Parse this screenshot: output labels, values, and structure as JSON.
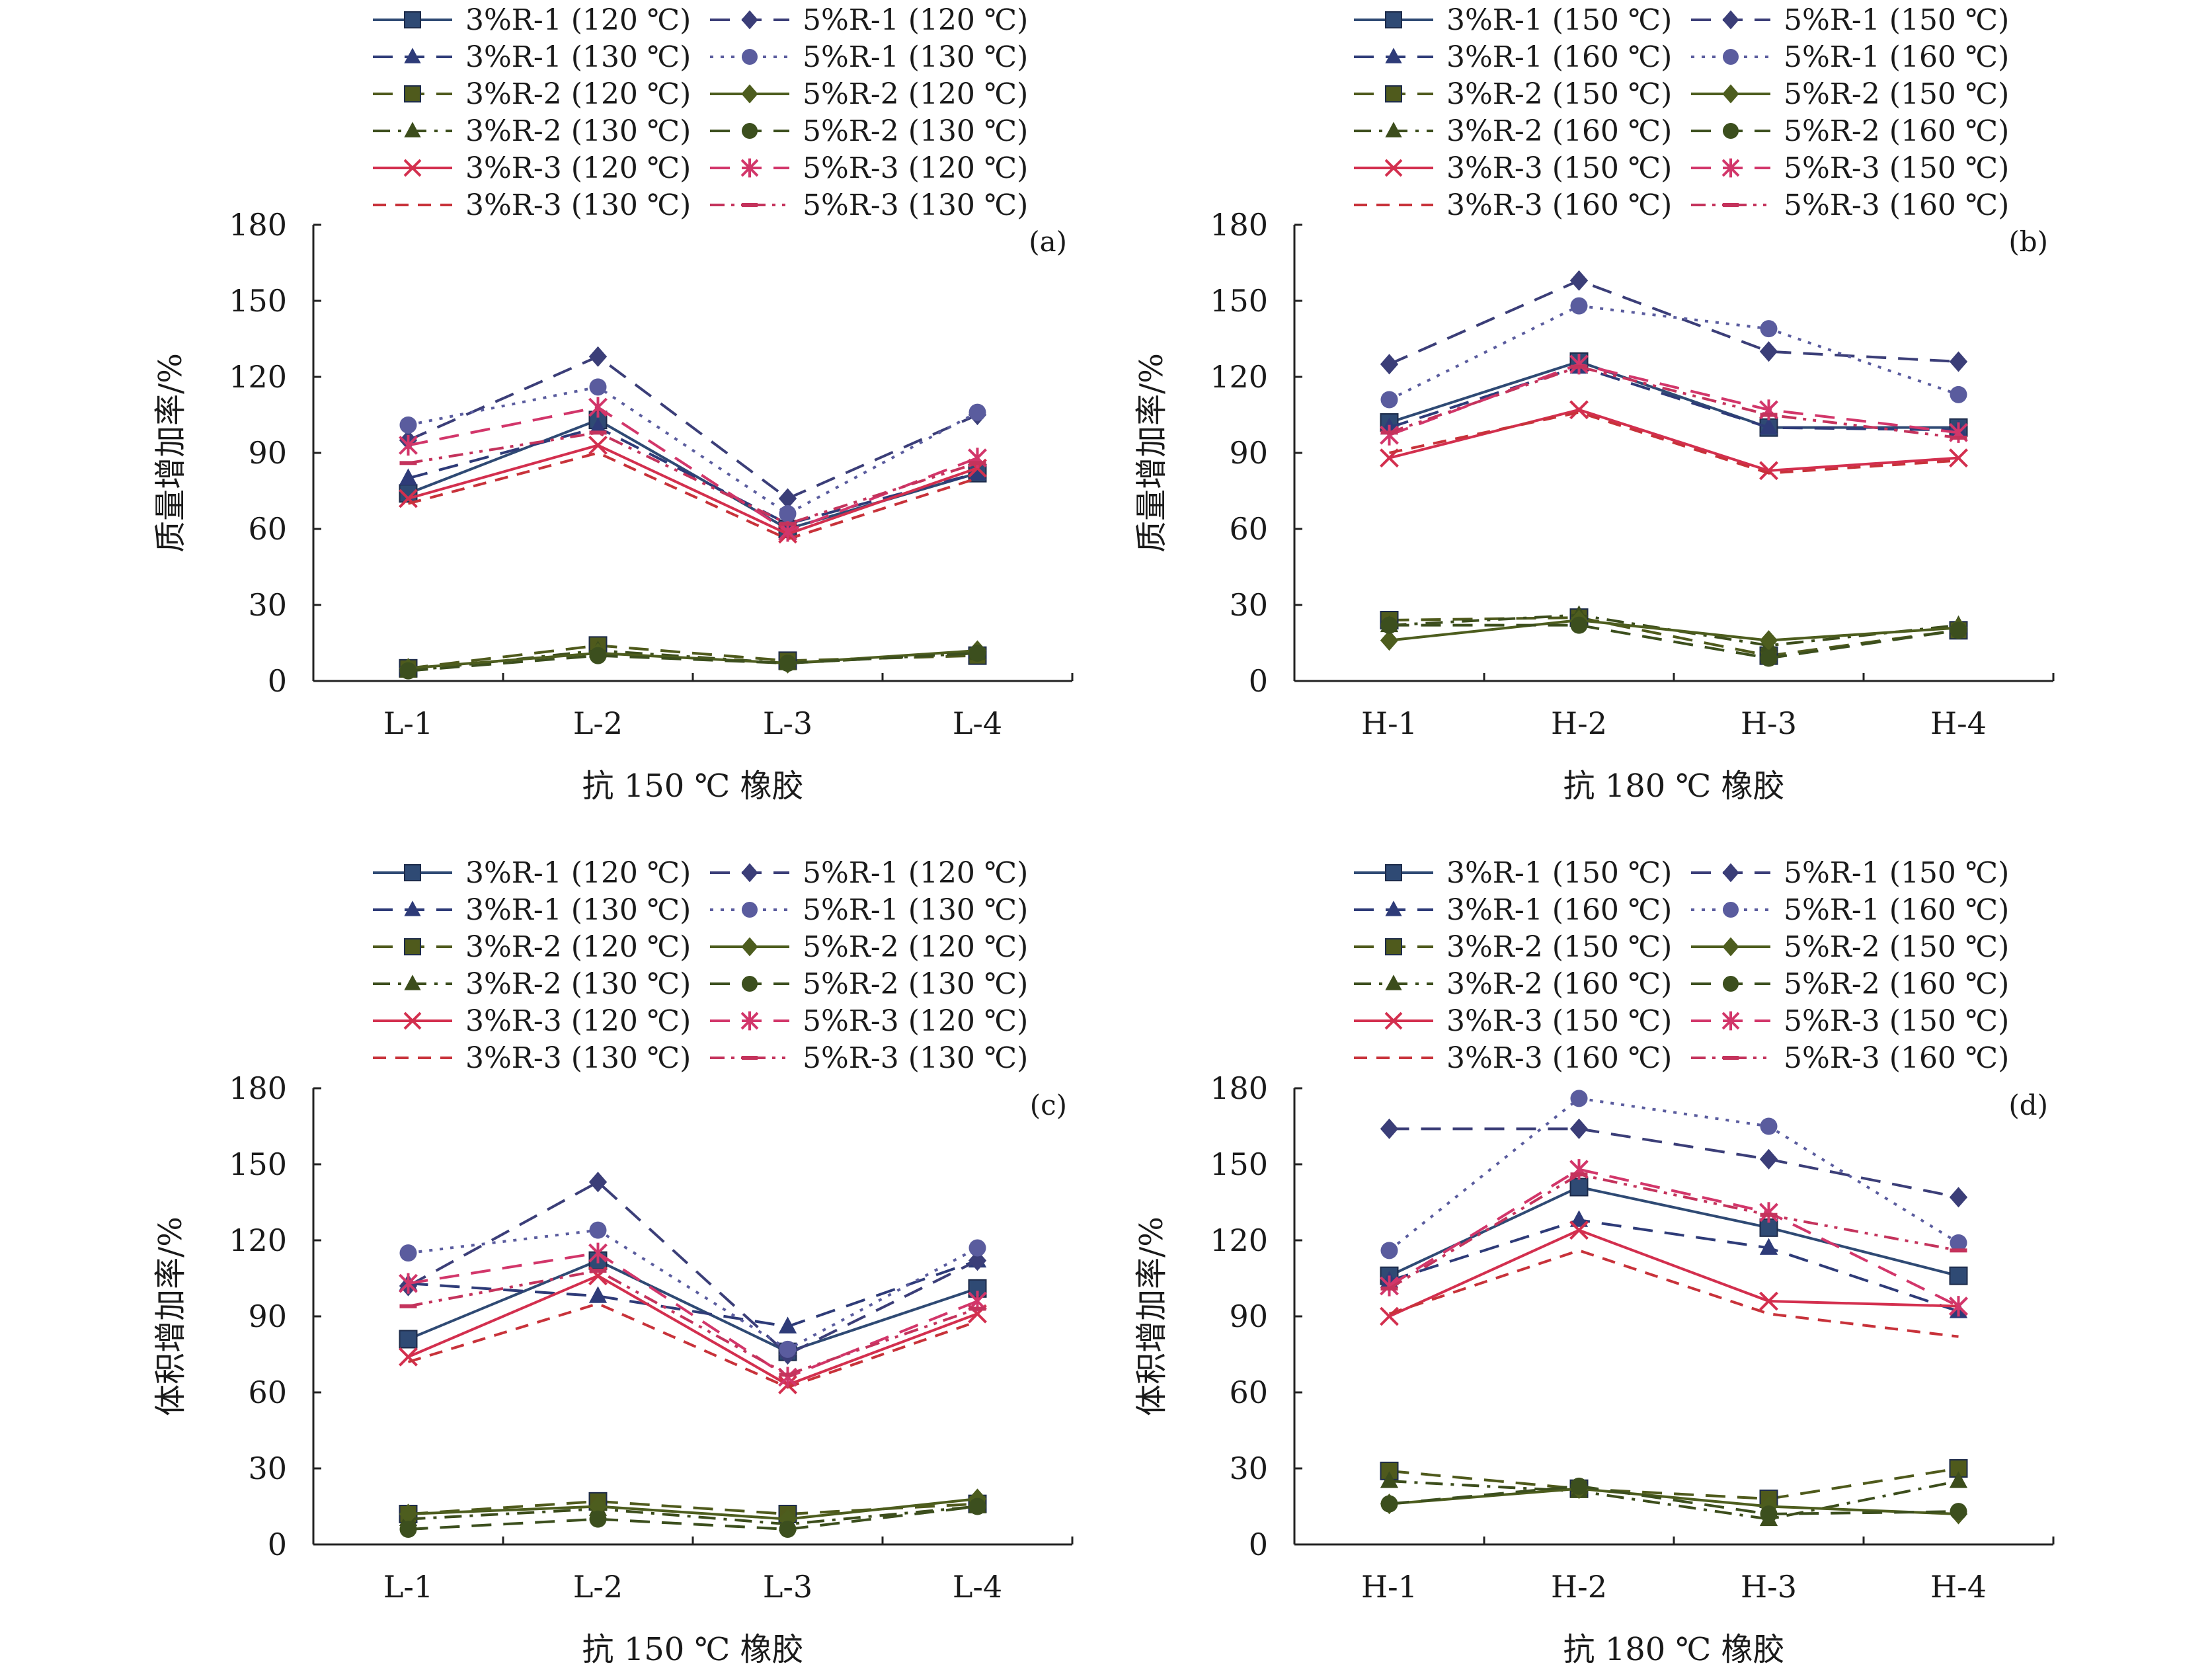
{
  "figure": {
    "ylabel_mass": "质量增加率/%",
    "ylabel_volume": "体积增加率/%",
    "xlabel_150": "抗 150 ℃ 橡胶",
    "xlabel_180": "抗 180 ℃ 橡胶"
  },
  "chart_data": [
    {
      "type": "line",
      "panel": "(a)",
      "xlabel": "抗 150 ℃ 橡胶",
      "ylabel": "质量增加率/%",
      "categories": [
        "L-1",
        "L-2",
        "L-3",
        "L-4"
      ],
      "ylim": [
        0,
        180
      ],
      "yticks": [
        0,
        30,
        60,
        90,
        120,
        150,
        180
      ],
      "grid": false,
      "legend_position": "top",
      "series": [
        {
          "name": "3%R-1 (120 ℃)",
          "values": [
            74,
            103,
            60,
            82
          ],
          "color": "#2f4a74",
          "dash": "solid",
          "marker": "square"
        },
        {
          "name": "3%R-1 (130 ℃)",
          "values": [
            80,
            100,
            62,
            82
          ],
          "color": "#2e3b78",
          "dash": "longdash",
          "marker": "triangle"
        },
        {
          "name": "3%R-2 (120 ℃)",
          "values": [
            5,
            14,
            8,
            10
          ],
          "color": "#4f5a1c",
          "dash": "longdash",
          "marker": "square"
        },
        {
          "name": "3%R-2 (130 ℃)",
          "values": [
            4,
            12,
            7,
            11
          ],
          "color": "#3c4d1c",
          "dash": "dashdot",
          "marker": "triangle"
        },
        {
          "name": "3%R-3 (120 ℃)",
          "values": [
            72,
            93,
            58,
            84
          ],
          "color": "#d32f4e",
          "dash": "solid",
          "marker": "x"
        },
        {
          "name": "3%R-3 (130 ℃)",
          "values": [
            70,
            90,
            56,
            80
          ],
          "color": "#c8323a",
          "dash": "dash",
          "marker": "none"
        },
        {
          "name": "5%R-1 (120 ℃)",
          "values": [
            95,
            128,
            72,
            105
          ],
          "color": "#3b3e78",
          "dash": "longdash",
          "marker": "diamond"
        },
        {
          "name": "5%R-1 (130 ℃)",
          "values": [
            101,
            116,
            66,
            106
          ],
          "color": "#5a5c9e",
          "dash": "dot",
          "marker": "circle"
        },
        {
          "name": "5%R-2 (120 ℃)",
          "values": [
            5,
            11,
            7,
            12
          ],
          "color": "#4d5d1e",
          "dash": "solid",
          "marker": "diamond"
        },
        {
          "name": "5%R-2 (130 ℃)",
          "values": [
            4,
            10,
            7,
            11
          ],
          "color": "#3c4f1e",
          "dash": "longdash",
          "marker": "circle"
        },
        {
          "name": "5%R-3 (120 ℃)",
          "values": [
            93,
            108,
            59,
            88
          ],
          "color": "#d2366a",
          "dash": "longdash",
          "marker": "asterisk"
        },
        {
          "name": "5%R-3 (130 ℃)",
          "values": [
            86,
            98,
            62,
            86
          ],
          "color": "#c4335c",
          "dash": "dashdotdot",
          "marker": "bar"
        }
      ]
    },
    {
      "type": "line",
      "panel": "(b)",
      "xlabel": "抗 180 ℃ 橡胶",
      "ylabel": "质量增加率/%",
      "categories": [
        "H-1",
        "H-2",
        "H-3",
        "H-4"
      ],
      "ylim": [
        0,
        180
      ],
      "yticks": [
        0,
        30,
        60,
        90,
        120,
        150,
        180
      ],
      "grid": false,
      "legend_position": "top",
      "series": [
        {
          "name": "3%R-1 (150 ℃)",
          "values": [
            102,
            126,
            100,
            100
          ],
          "color": "#2f4a74",
          "dash": "solid",
          "marker": "square"
        },
        {
          "name": "3%R-1 (160 ℃)",
          "values": [
            100,
            124,
            100,
            99
          ],
          "color": "#2e3b78",
          "dash": "longdash",
          "marker": "triangle"
        },
        {
          "name": "3%R-2 (150 ℃)",
          "values": [
            24,
            25,
            10,
            20
          ],
          "color": "#4f5a1c",
          "dash": "longdash",
          "marker": "square"
        },
        {
          "name": "3%R-2 (160 ℃)",
          "values": [
            22,
            26,
            14,
            22
          ],
          "color": "#3c4d1c",
          "dash": "dashdot",
          "marker": "triangle"
        },
        {
          "name": "3%R-3 (150 ℃)",
          "values": [
            88,
            107,
            83,
            88
          ],
          "color": "#d32f4e",
          "dash": "solid",
          "marker": "x"
        },
        {
          "name": "3%R-3 (160 ℃)",
          "values": [
            90,
            106,
            82,
            87
          ],
          "color": "#c8323a",
          "dash": "dash",
          "marker": "none"
        },
        {
          "name": "5%R-1 (150 ℃)",
          "values": [
            125,
            158,
            130,
            126
          ],
          "color": "#3b3e78",
          "dash": "longdash",
          "marker": "diamond"
        },
        {
          "name": "5%R-1 (160 ℃)",
          "values": [
            111,
            148,
            139,
            113
          ],
          "color": "#5a5c9e",
          "dash": "dot",
          "marker": "circle"
        },
        {
          "name": "5%R-2 (150 ℃)",
          "values": [
            16,
            24,
            16,
            21
          ],
          "color": "#4d5d1e",
          "dash": "solid",
          "marker": "diamond"
        },
        {
          "name": "5%R-2 (160 ℃)",
          "values": [
            22,
            22,
            9,
            20
          ],
          "color": "#3c4f1e",
          "dash": "longdash",
          "marker": "circle"
        },
        {
          "name": "5%R-3 (150 ℃)",
          "values": [
            97,
            125,
            107,
            98
          ],
          "color": "#d2366a",
          "dash": "longdash",
          "marker": "asterisk"
        },
        {
          "name": "5%R-3 (160 ℃)",
          "values": [
            98,
            124,
            105,
            96
          ],
          "color": "#c4335c",
          "dash": "dashdotdot",
          "marker": "bar"
        }
      ]
    },
    {
      "type": "line",
      "panel": "(c)",
      "xlabel": "抗 150 ℃ 橡胶",
      "ylabel": "体积增加率/%",
      "categories": [
        "L-1",
        "L-2",
        "L-3",
        "L-4"
      ],
      "ylim": [
        0,
        180
      ],
      "yticks": [
        0,
        30,
        60,
        90,
        120,
        150,
        180
      ],
      "grid": false,
      "legend_position": "top",
      "series": [
        {
          "name": "3%R-1 (120 ℃)",
          "values": [
            81,
            112,
            76,
            101
          ],
          "color": "#2f4a74",
          "dash": "solid",
          "marker": "square"
        },
        {
          "name": "3%R-1 (130 ℃)",
          "values": [
            103,
            98,
            86,
            112
          ],
          "color": "#2e3b78",
          "dash": "longdash",
          "marker": "triangle"
        },
        {
          "name": "3%R-2 (120 ℃)",
          "values": [
            12,
            17,
            12,
            16
          ],
          "color": "#4f5a1c",
          "dash": "longdash",
          "marker": "square"
        },
        {
          "name": "3%R-2 (130 ℃)",
          "values": [
            10,
            14,
            8,
            15
          ],
          "color": "#3c4d1c",
          "dash": "dashdot",
          "marker": "triangle"
        },
        {
          "name": "3%R-3 (120 ℃)",
          "values": [
            74,
            106,
            63,
            91
          ],
          "color": "#d32f4e",
          "dash": "solid",
          "marker": "x"
        },
        {
          "name": "3%R-3 (130 ℃)",
          "values": [
            72,
            95,
            62,
            88
          ],
          "color": "#c8323a",
          "dash": "dash",
          "marker": "none"
        },
        {
          "name": "5%R-1 (120 ℃)",
          "values": [
            102,
            143,
            75,
            112
          ],
          "color": "#3b3e78",
          "dash": "longdash",
          "marker": "diamond"
        },
        {
          "name": "5%R-1 (130 ℃)",
          "values": [
            115,
            124,
            77,
            117
          ],
          "color": "#5a5c9e",
          "dash": "dot",
          "marker": "circle"
        },
        {
          "name": "5%R-2 (120 ℃)",
          "values": [
            12,
            15,
            10,
            18
          ],
          "color": "#4d5d1e",
          "dash": "solid",
          "marker": "diamond"
        },
        {
          "name": "5%R-2 (130 ℃)",
          "values": [
            6,
            10,
            6,
            15
          ],
          "color": "#3c4f1e",
          "dash": "longdash",
          "marker": "circle"
        },
        {
          "name": "5%R-3 (120 ℃)",
          "values": [
            103,
            115,
            66,
            96
          ],
          "color": "#d2366a",
          "dash": "longdash",
          "marker": "asterisk"
        },
        {
          "name": "5%R-3 (130 ℃)",
          "values": [
            94,
            108,
            67,
            93
          ],
          "color": "#c4335c",
          "dash": "dashdotdot",
          "marker": "bar"
        }
      ]
    },
    {
      "type": "line",
      "panel": "(d)",
      "xlabel": "抗 180 ℃ 橡胶",
      "ylabel": "体积增加率/%",
      "categories": [
        "H-1",
        "H-2",
        "H-3",
        "H-4"
      ],
      "ylim": [
        0,
        180
      ],
      "yticks": [
        0,
        30,
        60,
        90,
        120,
        150,
        180
      ],
      "grid": false,
      "legend_position": "top",
      "series": [
        {
          "name": "3%R-1 (150 ℃)",
          "values": [
            106,
            141,
            125,
            106
          ],
          "color": "#2f4a74",
          "dash": "solid",
          "marker": "square"
        },
        {
          "name": "3%R-1 (160 ℃)",
          "values": [
            104,
            128,
            117,
            92
          ],
          "color": "#2e3b78",
          "dash": "longdash",
          "marker": "triangle"
        },
        {
          "name": "3%R-2 (150 ℃)",
          "values": [
            29,
            22,
            18,
            30
          ],
          "color": "#4f5a1c",
          "dash": "longdash",
          "marker": "square"
        },
        {
          "name": "3%R-2 (160 ℃)",
          "values": [
            25,
            21,
            10,
            25
          ],
          "color": "#3c4d1c",
          "dash": "dashdot",
          "marker": "triangle"
        },
        {
          "name": "3%R-3 (150 ℃)",
          "values": [
            90,
            124,
            96,
            94
          ],
          "color": "#d32f4e",
          "dash": "solid",
          "marker": "x"
        },
        {
          "name": "3%R-3 (160 ℃)",
          "values": [
            91,
            116,
            91,
            82
          ],
          "color": "#c8323a",
          "dash": "dash",
          "marker": "none"
        },
        {
          "name": "5%R-1 (150 ℃)",
          "values": [
            164,
            164,
            152,
            137
          ],
          "color": "#3b3e78",
          "dash": "longdash",
          "marker": "diamond"
        },
        {
          "name": "5%R-1 (160 ℃)",
          "values": [
            116,
            176,
            165,
            119
          ],
          "color": "#5a5c9e",
          "dash": "dot",
          "marker": "circle"
        },
        {
          "name": "5%R-2 (150 ℃)",
          "values": [
            16,
            22,
            15,
            12
          ],
          "color": "#4d5d1e",
          "dash": "solid",
          "marker": "diamond"
        },
        {
          "name": "5%R-2 (160 ℃)",
          "values": [
            16,
            23,
            12,
            13
          ],
          "color": "#3c4f1e",
          "dash": "longdash",
          "marker": "circle"
        },
        {
          "name": "5%R-3 (150 ℃)",
          "values": [
            102,
            148,
            131,
            94
          ],
          "color": "#d2366a",
          "dash": "longdash",
          "marker": "asterisk"
        },
        {
          "name": "5%R-3 (160 ℃)",
          "values": [
            101,
            146,
            130,
            116
          ],
          "color": "#c4335c",
          "dash": "dashdotdot",
          "marker": "bar"
        }
      ]
    }
  ]
}
